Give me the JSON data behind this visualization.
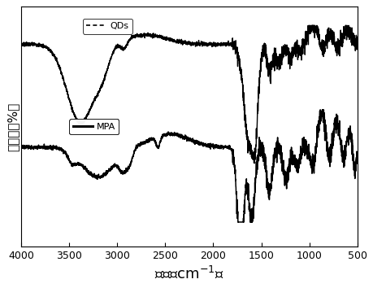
{
  "xlabel": "波数（cm-1）",
  "ylabel": "透过率（%）",
  "xlabel_fontsize": 13,
  "ylabel_fontsize": 11,
  "xmin": 500,
  "xmax": 4000,
  "background_color": "#ffffff",
  "line_color": "#000000",
  "legend_QDs": "QDs",
  "legend_MPA": "MPA",
  "xticks": [
    4000,
    3500,
    3000,
    2500,
    2000,
    1500,
    1000,
    500
  ],
  "tick_fontsize": 9
}
